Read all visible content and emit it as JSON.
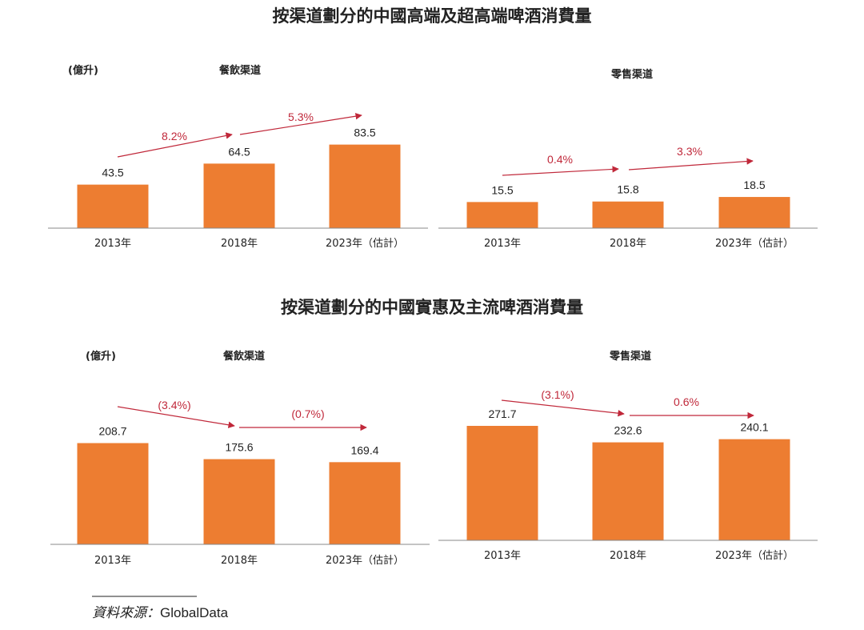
{
  "colors": {
    "bar": "#ED7D31",
    "arrow": "#C0283A",
    "axis": "#888888",
    "text": "#222222"
  },
  "titles": [
    "按渠道劃分的中國高端及超高端啤酒消費量",
    "按渠道劃分的中國實惠及主流啤酒消費量"
  ],
  "source": {
    "label": "資料來源：",
    "value": "GlobalData"
  },
  "chart_data": [
    {
      "type": "bar",
      "group": 0,
      "title": "餐飲渠道",
      "ylabel": "(億升)",
      "categories": [
        "2013年",
        "2018年",
        "2023年（估計）"
      ],
      "values": [
        43.5,
        64.5,
        83.5
      ],
      "ylim": [
        0,
        160
      ],
      "cagr": [
        "8.2%",
        "5.3%"
      ]
    },
    {
      "type": "bar",
      "group": 0,
      "title": "零售渠道",
      "ylabel": "",
      "categories": [
        "2013年",
        "2018年",
        "2023年（估計）"
      ],
      "values": [
        15.5,
        15.8,
        18.5
      ],
      "ylim": [
        0,
        95
      ],
      "cagr": [
        "0.4%",
        "3.3%"
      ]
    },
    {
      "type": "bar",
      "group": 1,
      "title": "餐飲渠道",
      "ylabel": "(億升)",
      "categories": [
        "2013年",
        "2018年",
        "2023年（估計）"
      ],
      "values": [
        208.7,
        175.6,
        169.4
      ],
      "ylim": [
        0,
        330
      ],
      "cagr": [
        "(3.4%)",
        "(0.7%)"
      ]
    },
    {
      "type": "bar",
      "group": 1,
      "title": "零售渠道",
      "ylabel": "",
      "categories": [
        "2013年",
        "2018年",
        "2023年（估計）"
      ],
      "values": [
        271.7,
        232.6,
        240.1
      ],
      "ylim": [
        0,
        380
      ],
      "cagr": [
        "(3.1%)",
        "0.6%"
      ]
    }
  ]
}
